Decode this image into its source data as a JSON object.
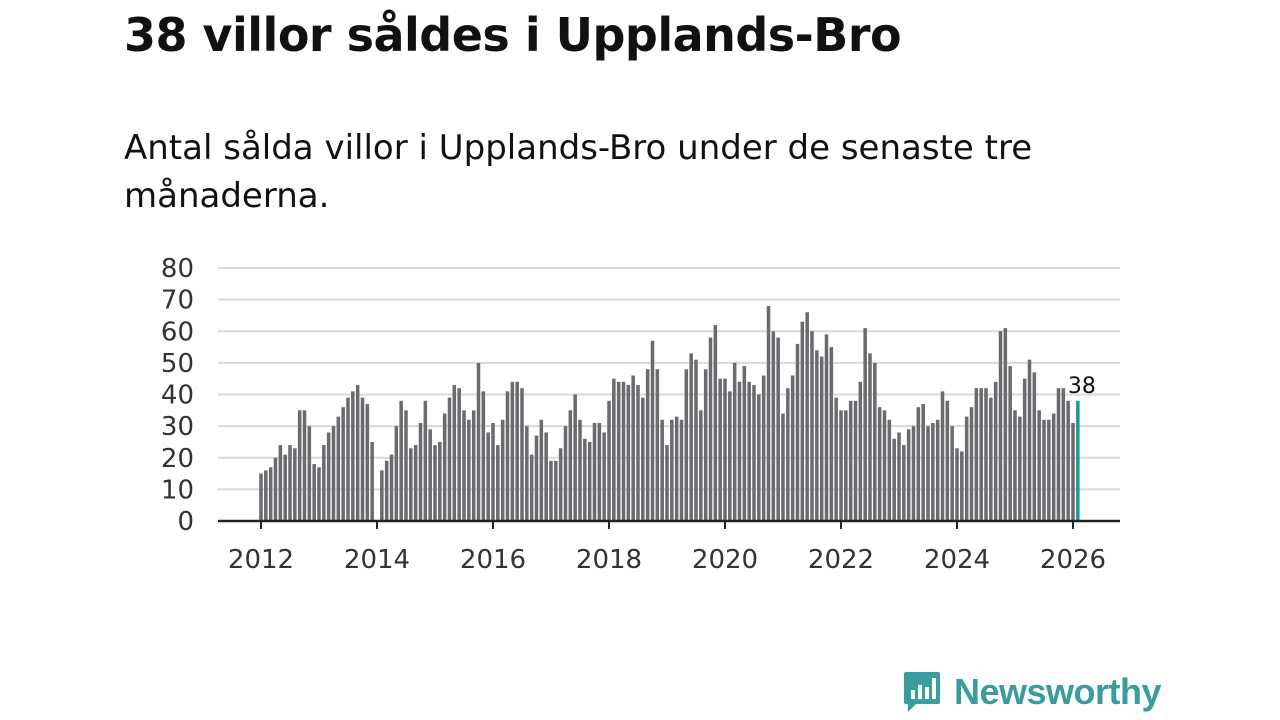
{
  "header": {
    "title": "38 villor såldes i Upplands-Bro",
    "subtitle": "Antal sålda villor i Upplands-Bro under de senaste tre månaderna."
  },
  "brand": {
    "name": "Newsworthy",
    "icon": "newsworthy-logo-icon",
    "color": "#3a9c9c"
  },
  "colors": {
    "bar": "#6b6b6f",
    "highlight": "#1a9a96",
    "grid": "#d9d9d9",
    "axis": "#222222"
  },
  "chart_data": {
    "type": "bar",
    "title": "38 villor såldes i Upplands-Bro",
    "xlabel": "",
    "ylabel": "",
    "ylim": [
      0,
      80
    ],
    "yticks": [
      0,
      10,
      20,
      30,
      40,
      50,
      60,
      70,
      80
    ],
    "xticks": [
      "2012",
      "2014",
      "2016",
      "2018",
      "2020",
      "2022",
      "2024",
      "2026"
    ],
    "start": "2012-01",
    "grid": true,
    "highlight_label": "38",
    "values": [
      15,
      16,
      17,
      20,
      24,
      21,
      24,
      23,
      35,
      35,
      30,
      18,
      17,
      24,
      28,
      30,
      33,
      36,
      39,
      41,
      43,
      39,
      37,
      25,
      0,
      16,
      19,
      21,
      30,
      38,
      35,
      23,
      24,
      31,
      38,
      29,
      24,
      25,
      34,
      39,
      43,
      42,
      35,
      32,
      35,
      50,
      41,
      28,
      31,
      24,
      32,
      41,
      44,
      44,
      42,
      30,
      21,
      27,
      32,
      28,
      19,
      19,
      23,
      30,
      35,
      40,
      32,
      26,
      25,
      31,
      31,
      28,
      38,
      45,
      44,
      44,
      43,
      46,
      43,
      39,
      48,
      57,
      48,
      32,
      24,
      32,
      33,
      32,
      48,
      53,
      51,
      35,
      48,
      58,
      62,
      45,
      45,
      41,
      50,
      44,
      49,
      44,
      43,
      40,
      46,
      68,
      60,
      58,
      34,
      42,
      46,
      56,
      63,
      66,
      60,
      54,
      52,
      59,
      55,
      39,
      35,
      35,
      38,
      38,
      44,
      61,
      53,
      50,
      36,
      35,
      32,
      26,
      28,
      24,
      29,
      30,
      36,
      37,
      30,
      31,
      32,
      41,
      38,
      30,
      23,
      22,
      33,
      36,
      42,
      42,
      42,
      39,
      44,
      60,
      61,
      49,
      35,
      33,
      45,
      51,
      47,
      35,
      32,
      32,
      34,
      42,
      42,
      38,
      31,
      38
    ]
  }
}
